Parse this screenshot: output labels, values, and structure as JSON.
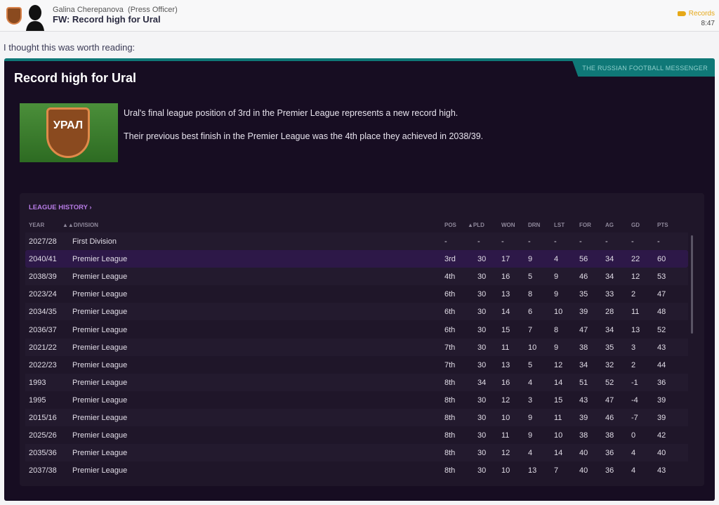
{
  "header": {
    "sender": "Galina Cherepanova",
    "role": "(Press Officer)",
    "subject": "FW: Record high for Ural",
    "tag": "Records",
    "time": "8:47"
  },
  "intro": "I thought this was worth reading:",
  "article": {
    "source": "THE RUSSIAN FOOTBALL MESSENGER",
    "title": "Record high for Ural",
    "crest_text": "УРАЛ",
    "paragraphs": [
      "Ural's final league position of 3rd in the Premier League represents a new record high.",
      "Their previous best finish in the Premier League was the 4th place they achieved in 2038/39."
    ]
  },
  "league_history": {
    "title": "LEAGUE HISTORY",
    "columns": [
      "YEAR",
      "DIVISION",
      "POS",
      "PLD",
      "WON",
      "DRN",
      "LST",
      "FOR",
      "AG",
      "GD",
      "PTS"
    ],
    "rows": [
      [
        "2027/28",
        "First Division",
        "-",
        "-",
        "-",
        "-",
        "-",
        "-",
        "-",
        "-",
        "-"
      ],
      [
        "2040/41",
        "Premier League",
        "3rd",
        "30",
        "17",
        "9",
        "4",
        "56",
        "34",
        "22",
        "60"
      ],
      [
        "2038/39",
        "Premier League",
        "4th",
        "30",
        "16",
        "5",
        "9",
        "46",
        "34",
        "12",
        "53"
      ],
      [
        "2023/24",
        "Premier League",
        "6th",
        "30",
        "13",
        "8",
        "9",
        "35",
        "33",
        "2",
        "47"
      ],
      [
        "2034/35",
        "Premier League",
        "6th",
        "30",
        "14",
        "6",
        "10",
        "39",
        "28",
        "11",
        "48"
      ],
      [
        "2036/37",
        "Premier League",
        "6th",
        "30",
        "15",
        "7",
        "8",
        "47",
        "34",
        "13",
        "52"
      ],
      [
        "2021/22",
        "Premier League",
        "7th",
        "30",
        "11",
        "10",
        "9",
        "38",
        "35",
        "3",
        "43"
      ],
      [
        "2022/23",
        "Premier League",
        "7th",
        "30",
        "13",
        "5",
        "12",
        "34",
        "32",
        "2",
        "44"
      ],
      [
        "1993",
        "Premier League",
        "8th",
        "34",
        "16",
        "4",
        "14",
        "51",
        "52",
        "-1",
        "36"
      ],
      [
        "1995",
        "Premier League",
        "8th",
        "30",
        "12",
        "3",
        "15",
        "43",
        "47",
        "-4",
        "39"
      ],
      [
        "2015/16",
        "Premier League",
        "8th",
        "30",
        "10",
        "9",
        "11",
        "39",
        "46",
        "-7",
        "39"
      ],
      [
        "2025/26",
        "Premier League",
        "8th",
        "30",
        "11",
        "9",
        "10",
        "38",
        "38",
        "0",
        "42"
      ],
      [
        "2035/36",
        "Premier League",
        "8th",
        "30",
        "12",
        "4",
        "14",
        "40",
        "36",
        "4",
        "40"
      ],
      [
        "2037/38",
        "Premier League",
        "8th",
        "30",
        "10",
        "13",
        "7",
        "40",
        "36",
        "4",
        "43"
      ]
    ]
  },
  "colors": {
    "accent_teal": "#0f7877",
    "link_purple": "#b77ce6",
    "highlight_row": "#2d1848",
    "tag": "#e6a817"
  }
}
